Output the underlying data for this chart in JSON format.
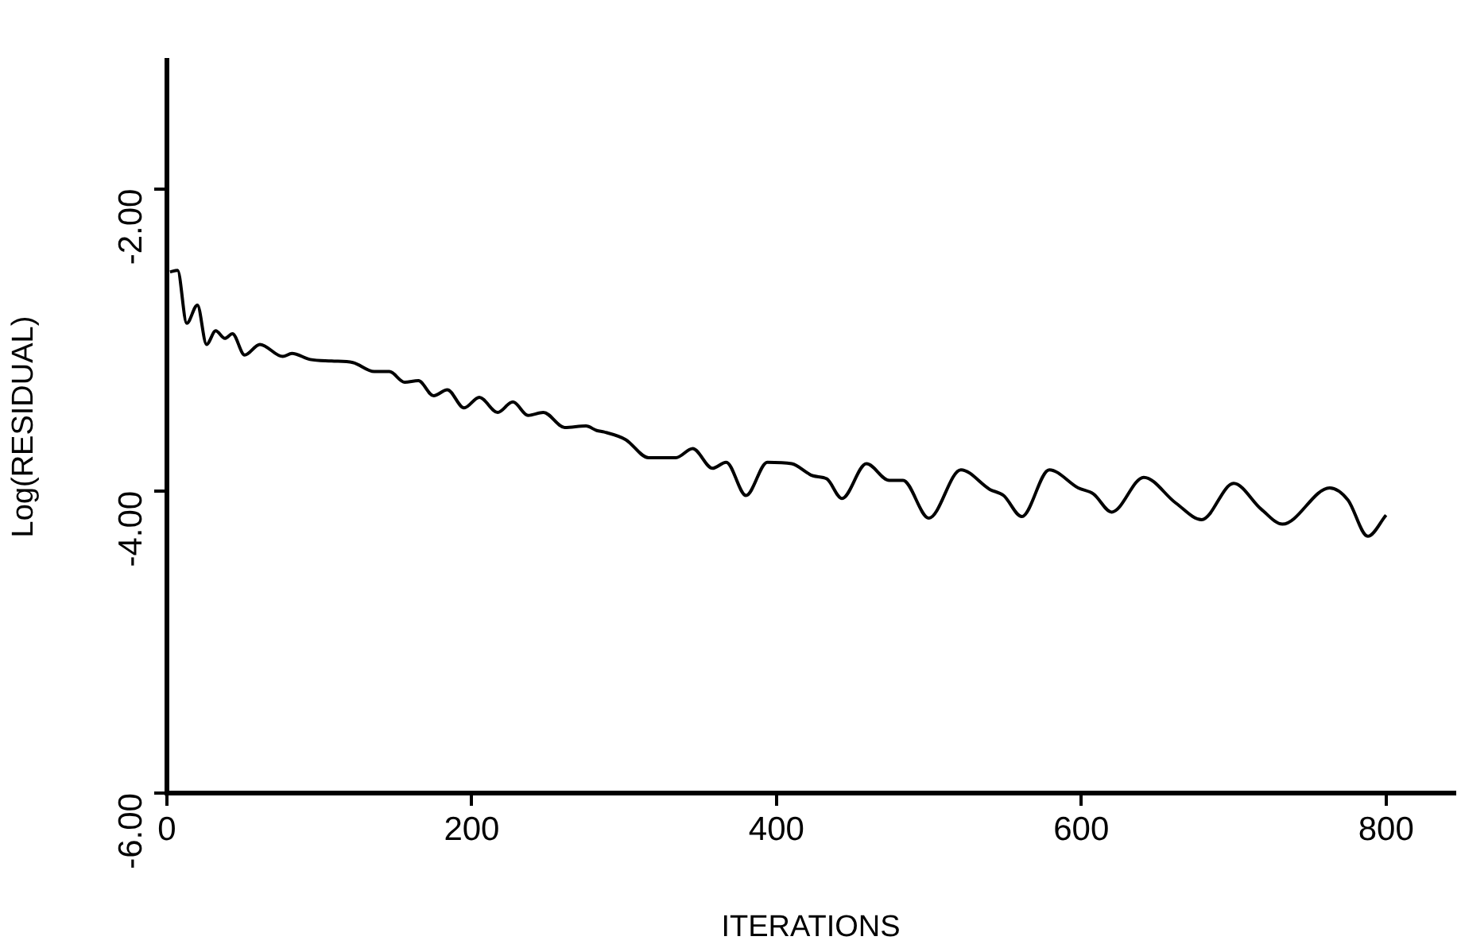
{
  "chart_data": {
    "type": "line",
    "xlabel": "ITERATIONS",
    "ylabel": "Log(RESIDUAL)",
    "xlim": [
      0,
      845
    ],
    "ylim": [
      -6,
      -1.15
    ],
    "xticks": [
      0,
      200,
      400,
      600,
      800
    ],
    "yticks": [
      {
        "value": -2,
        "label": "-2.00"
      },
      {
        "value": -4,
        "label": "-4.00"
      },
      {
        "value": -6,
        "label": "-6.00"
      }
    ],
    "grid": false,
    "legend": false,
    "marker": "none",
    "line_style": "solid",
    "series": [
      {
        "color": "#000000",
        "x": [
          2,
          7,
          13,
          20,
          26,
          32,
          38,
          43,
          51,
          61,
          76,
          82,
          94,
          108,
          122,
          136,
          146,
          156,
          165,
          175,
          184,
          195,
          205,
          217,
          227,
          237,
          247,
          261,
          275,
          282,
          287,
          301,
          316,
          334,
          345,
          358,
          367,
          380,
          394,
          410,
          424,
          433,
          443,
          459,
          474,
          483,
          500,
          521,
          540,
          549,
          561,
          579,
          598,
          608,
          620,
          641,
          662,
          679,
          700,
          718,
          732,
          763,
          775,
          788,
          800
        ],
        "values": [
          -2.55,
          -2.54,
          -2.89,
          -2.77,
          -3.03,
          -2.94,
          -2.99,
          -2.96,
          -3.1,
          -3.03,
          -3.11,
          -3.09,
          -3.13,
          -3.14,
          -3.15,
          -3.21,
          -3.21,
          -3.28,
          -3.27,
          -3.37,
          -3.33,
          -3.45,
          -3.38,
          -3.48,
          -3.41,
          -3.5,
          -3.48,
          -3.58,
          -3.57,
          -3.6,
          -3.61,
          -3.66,
          -3.78,
          -3.78,
          -3.72,
          -3.85,
          -3.81,
          -4.03,
          -3.81,
          -3.82,
          -3.9,
          -3.92,
          -4.05,
          -3.82,
          -3.93,
          -3.93,
          -4.18,
          -3.86,
          -3.99,
          -4.03,
          -4.17,
          -3.86,
          -3.98,
          -4.02,
          -4.14,
          -3.91,
          -4.08,
          -4.19,
          -3.95,
          -4.12,
          -4.22,
          -3.98,
          -4.06,
          -4.3,
          -4.16
        ]
      }
    ]
  }
}
